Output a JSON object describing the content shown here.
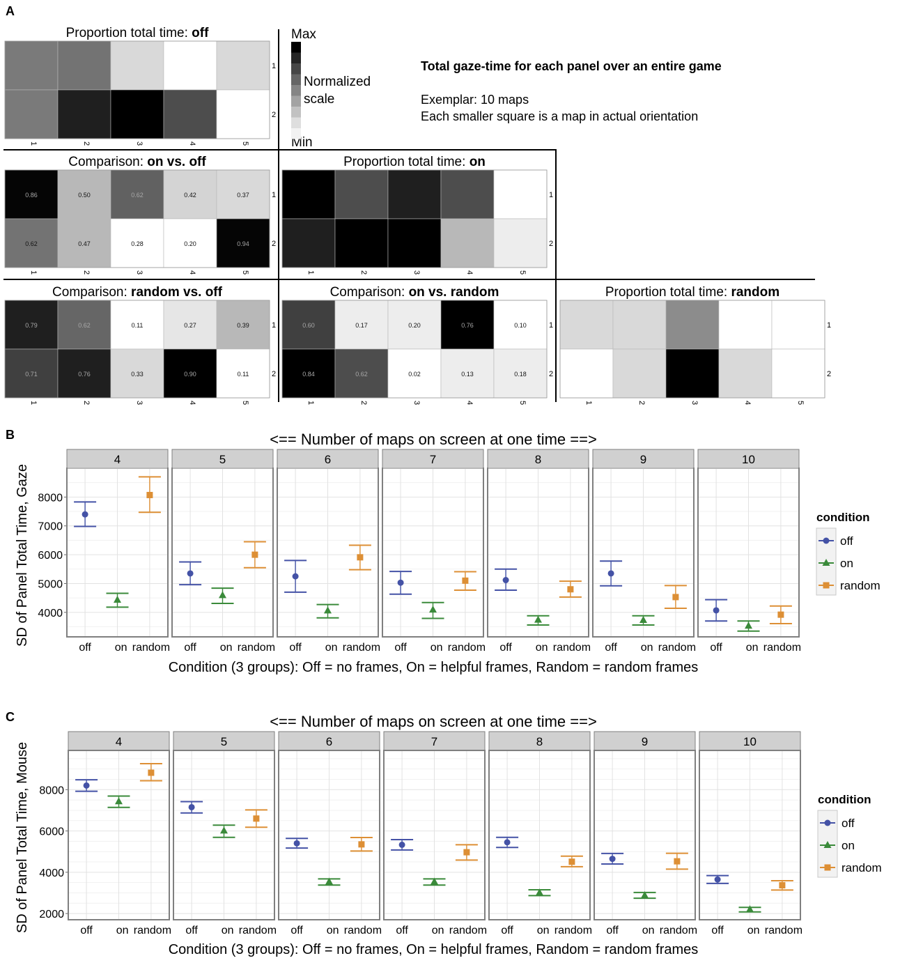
{
  "panel_a": {
    "letter": "A",
    "info": {
      "title": "Total gaze-time for each panel over an entire game",
      "line1": "Exemplar: 10 maps",
      "line2": "Each smaller square is a map in actual orientation"
    },
    "legend": {
      "max": "Max",
      "min": "Min",
      "label1": "Normalized",
      "label2": "scale"
    },
    "cols": [
      "1",
      "2",
      "3",
      "4",
      "5"
    ],
    "rows": [
      "1",
      "2"
    ],
    "heatmaps": [
      {
        "prefix": "Proportion total time: ",
        "bold": "off",
        "intensity": [
          [
            0.52,
            0.55,
            0.15,
            0.0,
            0.15
          ],
          [
            0.52,
            0.88,
            1.0,
            0.7,
            0.0
          ]
        ],
        "labels": null
      },
      {
        "prefix": "Comparison: ",
        "bold": "on vs. off",
        "intensity": [
          [
            0.98,
            0.28,
            0.62,
            0.17,
            0.15
          ],
          [
            0.55,
            0.28,
            0.0,
            0.0,
            0.98
          ]
        ],
        "labels": [
          [
            "0.86",
            "0.50",
            "0.62",
            "0.42",
            "0.37"
          ],
          [
            "0.62",
            "0.47",
            "0.28",
            "0.20",
            "0.94"
          ]
        ]
      },
      {
        "prefix": "Proportion total time: ",
        "bold": "on",
        "intensity": [
          [
            1.0,
            0.7,
            0.88,
            0.7,
            0.0
          ],
          [
            0.88,
            1.0,
            1.0,
            0.28,
            0.07
          ]
        ],
        "labels": null
      },
      {
        "prefix": "Comparison: ",
        "bold": "random vs. off",
        "intensity": [
          [
            0.88,
            0.6,
            0.0,
            0.1,
            0.28
          ],
          [
            0.75,
            0.88,
            0.15,
            1.0,
            0.0
          ]
        ],
        "labels": [
          [
            "0.79",
            "0.62",
            "0.11",
            "0.27",
            "0.39"
          ],
          [
            "0.71",
            "0.76",
            "0.33",
            "0.90",
            "0.11"
          ]
        ]
      },
      {
        "prefix": "Comparison: ",
        "bold": "on vs. random",
        "intensity": [
          [
            0.75,
            0.07,
            0.07,
            1.0,
            0.0
          ],
          [
            1.0,
            0.7,
            0.0,
            0.07,
            0.07
          ]
        ],
        "labels": [
          [
            "0.60",
            "0.17",
            "0.20",
            "0.76",
            "0.10"
          ],
          [
            "0.84",
            "0.62",
            "0.02",
            "0.13",
            "0.18"
          ]
        ]
      },
      {
        "prefix": "Proportion total time: ",
        "bold": "random",
        "intensity": [
          [
            0.15,
            0.15,
            0.45,
            0.0,
            0.0
          ],
          [
            0.0,
            0.15,
            1.0,
            0.15,
            0.0
          ]
        ],
        "labels": null
      }
    ]
  },
  "legend": {
    "title": "condition",
    "items": [
      {
        "label": "off",
        "color": "#4452a6",
        "shape": "circle"
      },
      {
        "label": "on",
        "color": "#3a8a3a",
        "shape": "triangle"
      },
      {
        "label": "random",
        "color": "#dd8f35",
        "shape": "square"
      }
    ]
  },
  "chart_data": [
    {
      "type": "scatter",
      "letter": "B",
      "title": "<== Number of maps on screen at one time ==>",
      "xlabel": "Condition (3 groups): Off = no frames, On = helpful frames, Random = random frames",
      "ylabel": "SD of Panel Total Time, Gaze",
      "facets": [
        "4",
        "5",
        "6",
        "7",
        "8",
        "9",
        "10"
      ],
      "categories": [
        "off",
        "on",
        "random"
      ],
      "ylim": [
        3150,
        9000
      ],
      "yticks": [
        4000,
        5000,
        6000,
        7000,
        8000
      ],
      "series": [
        {
          "name": "off",
          "values": [
            7400,
            5350,
            5250,
            5030,
            5120,
            5350,
            4070
          ],
          "lower": [
            6980,
            4960,
            4700,
            4630,
            4770,
            4920,
            3700
          ],
          "upper": [
            7830,
            5750,
            5800,
            5420,
            5500,
            5780,
            4440
          ]
        },
        {
          "name": "on",
          "values": [
            4430,
            4590,
            4060,
            4090,
            3740,
            3730,
            3530
          ],
          "lower": [
            4180,
            4310,
            3810,
            3790,
            3560,
            3560,
            3350
          ],
          "upper": [
            4660,
            4840,
            4270,
            4340,
            3880,
            3880,
            3700
          ]
        },
        {
          "name": "random",
          "values": [
            8070,
            6000,
            5910,
            5100,
            4800,
            4530,
            3920
          ],
          "lower": [
            7470,
            5550,
            5480,
            4770,
            4530,
            4140,
            3610
          ],
          "upper": [
            8700,
            6450,
            6330,
            5410,
            5080,
            4930,
            4220
          ]
        }
      ]
    },
    {
      "type": "scatter",
      "letter": "C",
      "title": "<== Number of maps on screen at one time ==>",
      "xlabel": "Condition (3 groups): Off = no frames, On = helpful frames, Random = random frames",
      "ylabel": "SD of Panel Total Time, Mouse",
      "facets": [
        "4",
        "5",
        "6",
        "7",
        "8",
        "9",
        "10"
      ],
      "categories": [
        "off",
        "on",
        "random"
      ],
      "ylim": [
        1700,
        9900
      ],
      "yticks": [
        2000,
        4000,
        6000,
        8000
      ],
      "series": [
        {
          "name": "off",
          "values": [
            8200,
            7150,
            5400,
            5330,
            5450,
            4650,
            3650
          ],
          "lower": [
            7920,
            6870,
            5170,
            5080,
            5200,
            4400,
            3460
          ],
          "upper": [
            8480,
            7420,
            5640,
            5580,
            5690,
            4910,
            3840
          ]
        },
        {
          "name": "on",
          "values": [
            7430,
            6010,
            3540,
            3540,
            3010,
            2880,
            2200
          ],
          "lower": [
            7140,
            5690,
            3380,
            3380,
            2870,
            2740,
            2080
          ],
          "upper": [
            7690,
            6280,
            3680,
            3680,
            3150,
            3020,
            2300
          ]
        },
        {
          "name": "random",
          "values": [
            8820,
            6600,
            5350,
            4970,
            4510,
            4530,
            3370
          ],
          "lower": [
            8430,
            6180,
            5030,
            4590,
            4270,
            4150,
            3140
          ],
          "upper": [
            9260,
            7020,
            5680,
            5330,
            4780,
            4920,
            3590
          ]
        }
      ]
    }
  ]
}
